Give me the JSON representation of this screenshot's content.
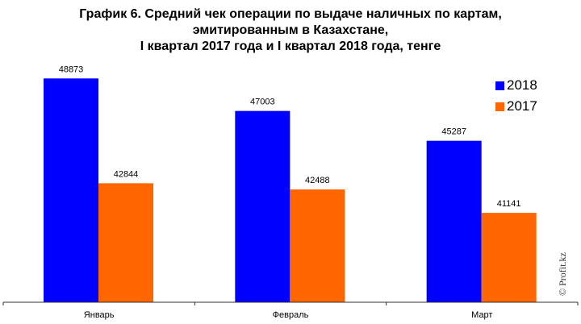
{
  "chart_data": {
    "type": "bar",
    "title": [
      "График 6. Средний чек операции по выдаче наличных по картам,",
      "эмитированным в Казахстане,",
      "I квартал 2017 года и I квартал 2018 года, тенге"
    ],
    "categories": [
      "Январь",
      "Февраль",
      "Март"
    ],
    "series": [
      {
        "name": "2018",
        "color": "#0000FF",
        "values": [
          48873,
          47003,
          45287
        ]
      },
      {
        "name": "2017",
        "color": "#FF6600",
        "values": [
          42844,
          42488,
          41141
        ]
      }
    ],
    "xlabel": "",
    "ylabel": "",
    "ylim": [
      36000,
      50000
    ],
    "grid": false,
    "legend_position": "top-right"
  },
  "watermark": "© Profit.kz"
}
